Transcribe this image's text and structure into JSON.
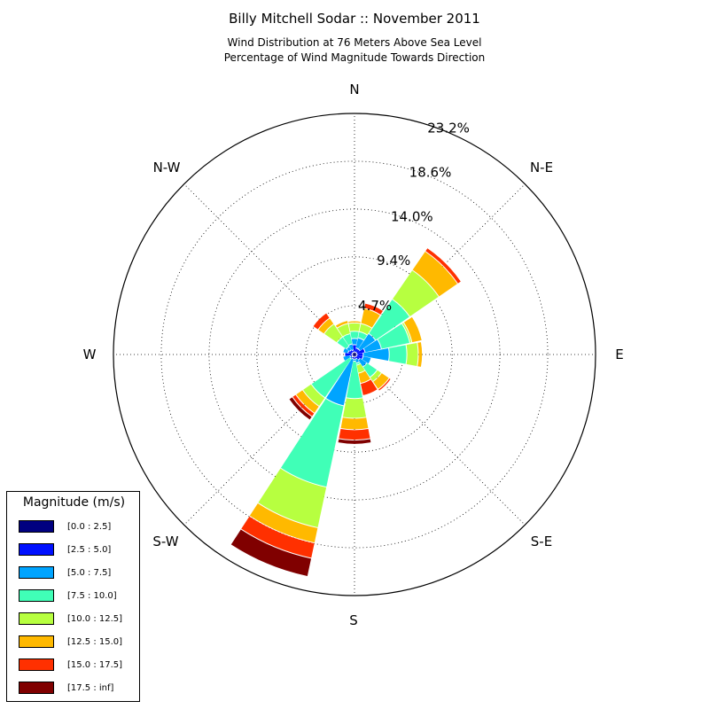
{
  "chart_data": {
    "type": "windrose",
    "title": "Billy Mitchell Sodar :: November 2011",
    "subtitle_lines": [
      "Wind Distribution at 76 Meters Above Sea Level",
      "Percentage of Wind Magnitude Towards Direction"
    ],
    "direction_labels": [
      "N",
      "N-E",
      "E",
      "S-E",
      "S",
      "S-W",
      "W",
      "N-W"
    ],
    "radial_ticks": [
      "4.7%",
      "9.4%",
      "14.0%",
      "18.6%",
      "23.2%"
    ],
    "radial_max": 23.2,
    "legend_title": "Magnitude (m/s)",
    "bins": [
      {
        "name": "[0.0 : 2.5]",
        "color": "#000080"
      },
      {
        "name": "[2.5 : 5.0]",
        "color": "#0010ff"
      },
      {
        "name": "[5.0 : 7.5]",
        "color": "#00a4ff"
      },
      {
        "name": "[7.5 : 10.0]",
        "color": "#40ffb7"
      },
      {
        "name": "[10.0 : 12.5]",
        "color": "#b7ff40"
      },
      {
        "name": "[12.5 : 15.0]",
        "color": "#ffb900"
      },
      {
        "name": "[15.0 : 17.5]",
        "color": "#ff3000"
      },
      {
        "name": "[17.5 : inf]",
        "color": "#800000"
      }
    ],
    "sectors": [
      {
        "direction_deg": 0,
        "cumulative": [
          0.2,
          0.9,
          1.5,
          2.2,
          3.0,
          3.2,
          3.3,
          3.3
        ]
      },
      {
        "direction_deg": 22.5,
        "cumulative": [
          0.2,
          0.6,
          1.6,
          2.2,
          3.0,
          4.5,
          5.0,
          5.0
        ]
      },
      {
        "direction_deg": 45,
        "cumulative": [
          0.2,
          0.6,
          2.4,
          6.4,
          9.8,
          12.0,
          12.4,
          12.4
        ]
      },
      {
        "direction_deg": 67.5,
        "cumulative": [
          0.2,
          1.0,
          2.6,
          5.4,
          5.6,
          6.6,
          6.6,
          6.6
        ]
      },
      {
        "direction_deg": 90,
        "cumulative": [
          0.2,
          0.8,
          3.3,
          5.0,
          6.1,
          6.5,
          6.5,
          6.5
        ]
      },
      {
        "direction_deg": 112.5,
        "cumulative": [
          0.2,
          0.8,
          1.6,
          1.6,
          1.6,
          1.6,
          1.6,
          1.6
        ]
      },
      {
        "direction_deg": 135,
        "cumulative": [
          0.2,
          0.6,
          1.4,
          2.6,
          3.1,
          4.0,
          4.2,
          4.2
        ]
      },
      {
        "direction_deg": 157.5,
        "cumulative": [
          0.2,
          0.4,
          0.8,
          1.0,
          1.8,
          2.8,
          4.0,
          4.0
        ]
      },
      {
        "direction_deg": 180,
        "cumulative": [
          0.2,
          0.4,
          0.6,
          4.2,
          6.1,
          7.2,
          8.2,
          8.6
        ]
      },
      {
        "direction_deg": 202.5,
        "cumulative": [
          0.2,
          0.4,
          5.0,
          13.0,
          17.0,
          18.5,
          20.0,
          21.8
        ]
      },
      {
        "direction_deg": 225,
        "cumulative": [
          0.2,
          0.3,
          0.5,
          5.0,
          6.0,
          6.8,
          7.2,
          7.6
        ]
      },
      {
        "direction_deg": 247.5,
        "cumulative": [
          0.2,
          0.4,
          1.1,
          1.1,
          1.1,
          1.1,
          1.1,
          1.1
        ]
      },
      {
        "direction_deg": 270,
        "cumulative": [
          0.2,
          0.9,
          0.9,
          0.9,
          0.9,
          0.9,
          0.9,
          0.9
        ]
      },
      {
        "direction_deg": 292.5,
        "cumulative": [
          0.2,
          0.6,
          1.1,
          1.1,
          1.1,
          1.1,
          1.1,
          1.1
        ]
      },
      {
        "direction_deg": 315,
        "cumulative": [
          0.2,
          0.5,
          0.9,
          2.0,
          3.5,
          4.2,
          4.8,
          4.8
        ]
      },
      {
        "direction_deg": 337.5,
        "cumulative": [
          0.2,
          0.4,
          1.0,
          2.0,
          3.0,
          3.3,
          3.3,
          3.3
        ]
      }
    ]
  }
}
